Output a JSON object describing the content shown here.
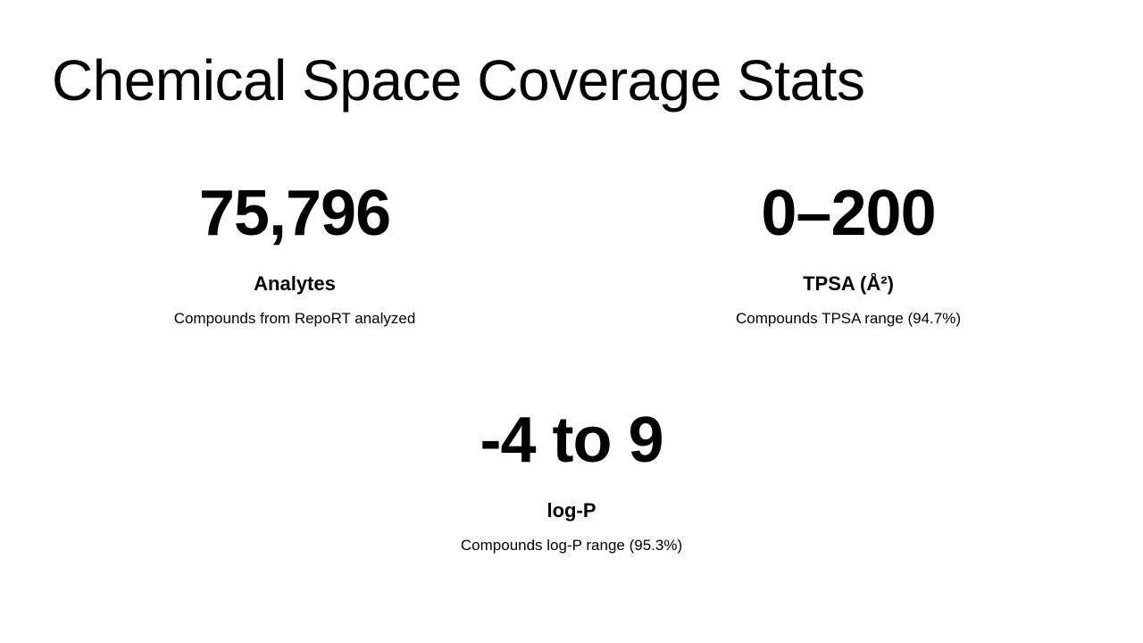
{
  "slide": {
    "title": "Chemical Space Coverage Stats",
    "stats": [
      {
        "value": "75,796",
        "label": "Analytes",
        "description": "Compounds from RepoRT analyzed"
      },
      {
        "value": "0–200",
        "label": "TPSA (Å²)",
        "description": "Compounds TPSA range (94.7%)"
      },
      {
        "value": "-4 to 9",
        "label": "log-P",
        "description": "Compounds log-P range (95.3%)"
      }
    ]
  }
}
